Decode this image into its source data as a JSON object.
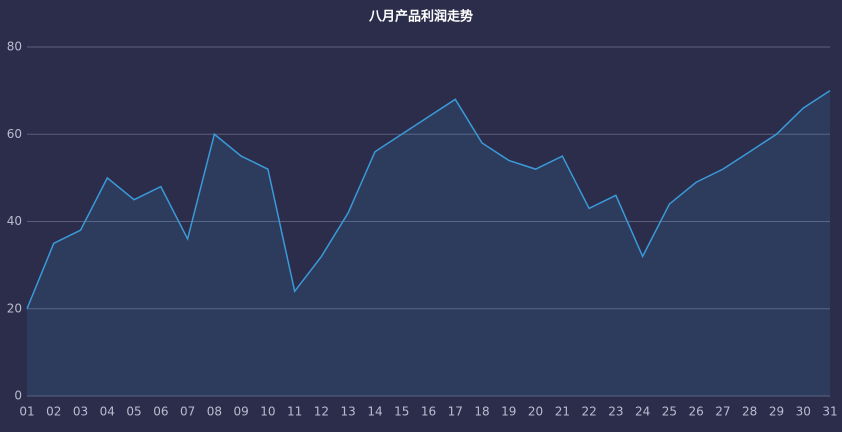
{
  "chart_data": {
    "type": "area",
    "title": "八月产品利润走势",
    "categories": [
      "01",
      "02",
      "03",
      "04",
      "05",
      "06",
      "07",
      "08",
      "09",
      "10",
      "11",
      "12",
      "13",
      "14",
      "15",
      "16",
      "17",
      "18",
      "19",
      "20",
      "21",
      "22",
      "23",
      "24",
      "25",
      "26",
      "27",
      "28",
      "29",
      "30",
      "31"
    ],
    "values": [
      20,
      35,
      38,
      50,
      45,
      48,
      36,
      60,
      55,
      52,
      24,
      32,
      42,
      56,
      60,
      64,
      68,
      58,
      54,
      52,
      55,
      43,
      46,
      32,
      44,
      49,
      52,
      56,
      60,
      66,
      70
    ],
    "color": "#3a9ad9",
    "ylim": [
      0,
      80
    ],
    "yticks": [
      0,
      20,
      40,
      60,
      80
    ],
    "grid": true
  }
}
